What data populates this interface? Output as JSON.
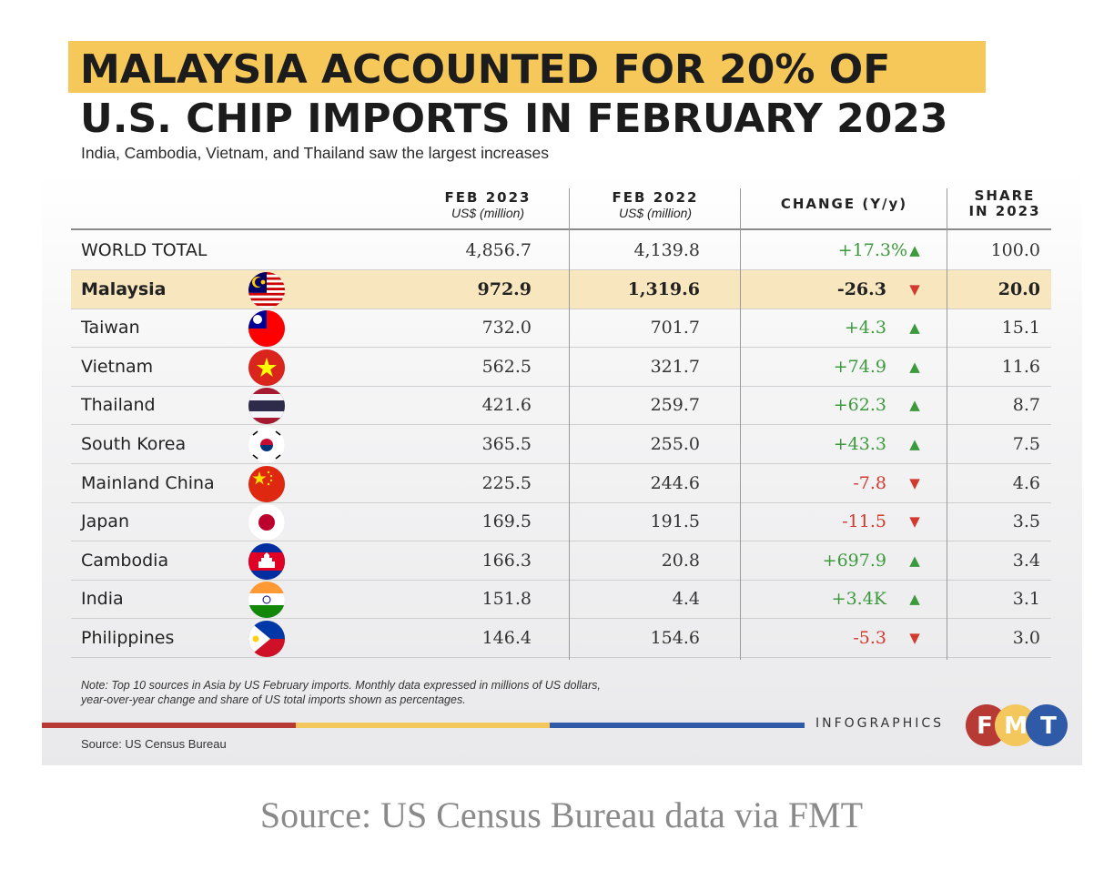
{
  "title_line1": "MALAYSIA ACCOUNTED FOR 20% OF",
  "title_line2": "U.S. CHIP IMPORTS IN FEBRUARY 2023",
  "subtitle": "India, Cambodia, Vietnam, and Thailand saw the largest increases",
  "columns": {
    "feb2023": "FEB 2023",
    "feb2023_unit": "US$ (million)",
    "feb2022": "FEB 2022",
    "feb2022_unit": "US$ (million)",
    "change": "CHANGE (Y/y)",
    "share_line1": "SHARE",
    "share_line2": "IN 2023"
  },
  "colors": {
    "highlight": "#f8e6be",
    "title_highlight": "#f6c85a",
    "up": "#3c9a3c",
    "down": "#d13a2e"
  },
  "chart_data": {
    "type": "table",
    "columns": [
      "",
      "FEB 2023 US$ (million)",
      "FEB 2022 US$ (million)",
      "CHANGE (Y/y)",
      "SHARE IN 2023"
    ],
    "rows": [
      {
        "name": "WORLD TOTAL",
        "feb2023": "4,856.7",
        "feb2022": "4,139.8",
        "change": "+17.3%",
        "dir": "up",
        "share": "100.0"
      },
      {
        "name": "Malaysia",
        "feb2023": "972.9",
        "feb2022": "1,319.6",
        "change": "-26.3",
        "dir": "down",
        "share": "20.0",
        "flag": "malaysia",
        "highlight": true
      },
      {
        "name": "Taiwan",
        "feb2023": "732.0",
        "feb2022": "701.7",
        "change": "+4.3",
        "dir": "up",
        "share": "15.1",
        "flag": "taiwan"
      },
      {
        "name": "Vietnam",
        "feb2023": "562.5",
        "feb2022": "321.7",
        "change": "+74.9",
        "dir": "up",
        "share": "11.6",
        "flag": "vietnam"
      },
      {
        "name": "Thailand",
        "feb2023": "421.6",
        "feb2022": "259.7",
        "change": "+62.3",
        "dir": "up",
        "share": "8.7",
        "flag": "thailand"
      },
      {
        "name": "South Korea",
        "feb2023": "365.5",
        "feb2022": "255.0",
        "change": "+43.3",
        "dir": "up",
        "share": "7.5",
        "flag": "south-korea"
      },
      {
        "name": "Mainland China",
        "feb2023": "225.5",
        "feb2022": "244.6",
        "change": "-7.8",
        "dir": "down",
        "share": "4.6",
        "flag": "china"
      },
      {
        "name": "Japan",
        "feb2023": "169.5",
        "feb2022": "191.5",
        "change": "-11.5",
        "dir": "down",
        "share": "3.5",
        "flag": "japan"
      },
      {
        "name": "Cambodia",
        "feb2023": "166.3",
        "feb2022": "20.8",
        "change": "+697.9",
        "dir": "up",
        "share": "3.4",
        "flag": "cambodia"
      },
      {
        "name": "India",
        "feb2023": "151.8",
        "feb2022": "4.4",
        "change": "+3.4K",
        "dir": "up",
        "share": "3.1",
        "flag": "india"
      },
      {
        "name": "Philippines",
        "feb2023": "146.4",
        "feb2022": "154.6",
        "change": "-5.3",
        "dir": "down",
        "share": "3.0",
        "flag": "philippines"
      }
    ]
  },
  "note_line1": "Note: Top 10 sources in Asia by US February imports. Monthly data expressed in millions of US dollars,",
  "note_line2": "year-over-year change and share of US total imports shown as percentages.",
  "brand": "INFOGRAPHICS",
  "logo_letters": [
    "F",
    "M",
    "T"
  ],
  "source_small": "Source: US Census Bureau",
  "caption": "Source: US Census Bureau data via FMT"
}
